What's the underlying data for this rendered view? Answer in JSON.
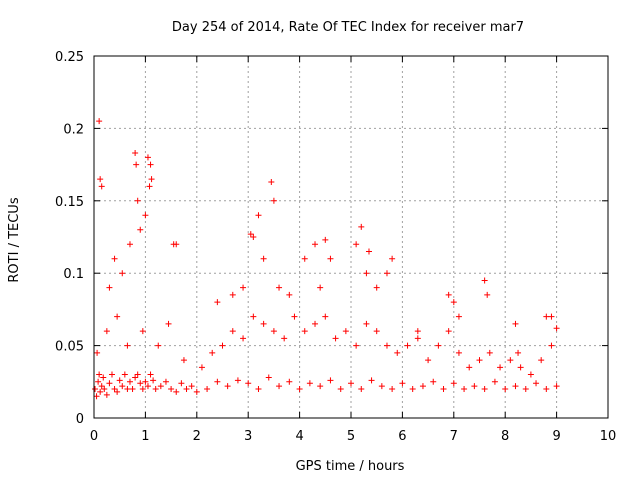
{
  "chart_data": {
    "type": "scatter",
    "title": "Day 254 of 2014, Rate Of TEC Index for receiver mar7",
    "xlabel": "GPS time / hours",
    "ylabel": "ROTI / TECUs",
    "xlim": [
      0,
      10
    ],
    "ylim": [
      0,
      0.25
    ],
    "xticks": [
      0,
      1,
      2,
      3,
      4,
      5,
      6,
      7,
      8,
      9,
      10
    ],
    "yticks": [
      0,
      0.05,
      0.1,
      0.15,
      0.2,
      0.25
    ],
    "xtick_labels": [
      "0",
      "1",
      "2",
      "3",
      "4",
      "5",
      "6",
      "7",
      "8",
      "9",
      "10"
    ],
    "ytick_labels": [
      "0",
      "0.05",
      "0.1",
      "0.15",
      "0.2",
      "0.25"
    ],
    "grid": true,
    "marker": "+",
    "series": [
      {
        "name": "ROTI",
        "color": "#ff0000",
        "x": [
          0.02,
          0.05,
          0.08,
          0.1,
          0.12,
          0.15,
          0.18,
          0.2,
          0.25,
          0.3,
          0.35,
          0.4,
          0.45,
          0.5,
          0.55,
          0.6,
          0.65,
          0.7,
          0.75,
          0.8,
          0.85,
          0.9,
          0.95,
          1.0,
          1.05,
          1.1,
          1.15,
          1.2,
          1.3,
          1.4,
          1.5,
          1.6,
          1.7,
          1.8,
          1.9,
          2.0,
          2.2,
          2.4,
          2.6,
          2.8,
          3.0,
          3.2,
          3.4,
          3.6,
          3.8,
          4.0,
          4.2,
          4.4,
          4.6,
          4.8,
          5.0,
          5.2,
          5.4,
          5.6,
          5.8,
          6.0,
          6.2,
          6.4,
          6.6,
          6.8,
          7.0,
          7.2,
          7.4,
          7.6,
          7.8,
          8.0,
          8.2,
          8.4,
          8.6,
          8.8,
          9.0,
          0.1,
          0.12,
          0.15,
          0.3,
          0.4,
          0.55,
          0.7,
          0.8,
          0.82,
          0.85,
          0.9,
          1.0,
          1.05,
          1.08,
          1.1,
          1.12,
          1.55,
          1.6,
          2.4,
          2.7,
          2.9,
          3.05,
          3.1,
          3.2,
          3.3,
          3.45,
          3.5,
          3.6,
          3.8,
          4.1,
          4.3,
          4.4,
          4.5,
          4.6,
          5.1,
          5.2,
          5.3,
          5.35,
          5.5,
          5.7,
          5.8,
          6.3,
          6.9,
          7.0,
          7.1,
          7.6,
          7.65,
          8.2,
          8.25,
          8.8,
          8.9,
          9.0,
          0.06,
          0.25,
          0.45,
          0.65,
          0.95,
          1.25,
          1.45,
          1.75,
          2.1,
          2.3,
          2.5,
          2.7,
          2.9,
          3.1,
          3.3,
          3.5,
          3.7,
          3.9,
          4.1,
          4.3,
          4.5,
          4.7,
          4.9,
          5.1,
          5.3,
          5.5,
          5.7,
          5.9,
          6.1,
          6.3,
          6.5,
          6.7,
          6.9,
          7.1,
          7.3,
          7.5,
          7.7,
          7.9,
          8.1,
          8.3,
          8.5,
          8.7,
          8.9
        ],
        "y": [
          0.02,
          0.015,
          0.025,
          0.03,
          0.018,
          0.022,
          0.028,
          0.02,
          0.016,
          0.024,
          0.03,
          0.02,
          0.018,
          0.026,
          0.022,
          0.03,
          0.02,
          0.025,
          0.02,
          0.028,
          0.03,
          0.024,
          0.02,
          0.025,
          0.022,
          0.03,
          0.026,
          0.02,
          0.022,
          0.025,
          0.02,
          0.018,
          0.024,
          0.02,
          0.022,
          0.018,
          0.02,
          0.025,
          0.022,
          0.026,
          0.024,
          0.02,
          0.028,
          0.022,
          0.025,
          0.02,
          0.024,
          0.022,
          0.026,
          0.02,
          0.024,
          0.02,
          0.026,
          0.022,
          0.02,
          0.024,
          0.02,
          0.022,
          0.025,
          0.02,
          0.024,
          0.02,
          0.022,
          0.02,
          0.025,
          0.02,
          0.022,
          0.02,
          0.024,
          0.02,
          0.022,
          0.205,
          0.165,
          0.16,
          0.09,
          0.11,
          0.1,
          0.12,
          0.183,
          0.175,
          0.15,
          0.13,
          0.14,
          0.18,
          0.16,
          0.175,
          0.165,
          0.12,
          0.12,
          0.08,
          0.085,
          0.09,
          0.127,
          0.125,
          0.14,
          0.11,
          0.163,
          0.15,
          0.09,
          0.085,
          0.11,
          0.12,
          0.09,
          0.123,
          0.11,
          0.12,
          0.132,
          0.1,
          0.115,
          0.09,
          0.1,
          0.11,
          0.06,
          0.085,
          0.08,
          0.07,
          0.095,
          0.085,
          0.065,
          0.045,
          0.07,
          0.07,
          0.062,
          0.045,
          0.06,
          0.07,
          0.05,
          0.06,
          0.05,
          0.065,
          0.04,
          0.035,
          0.045,
          0.05,
          0.06,
          0.055,
          0.07,
          0.065,
          0.06,
          0.055,
          0.07,
          0.06,
          0.065,
          0.07,
          0.055,
          0.06,
          0.05,
          0.065,
          0.06,
          0.05,
          0.045,
          0.05,
          0.055,
          0.04,
          0.05,
          0.06,
          0.045,
          0.035,
          0.04,
          0.045,
          0.035,
          0.04,
          0.035,
          0.03,
          0.04,
          0.05
        ]
      }
    ]
  }
}
